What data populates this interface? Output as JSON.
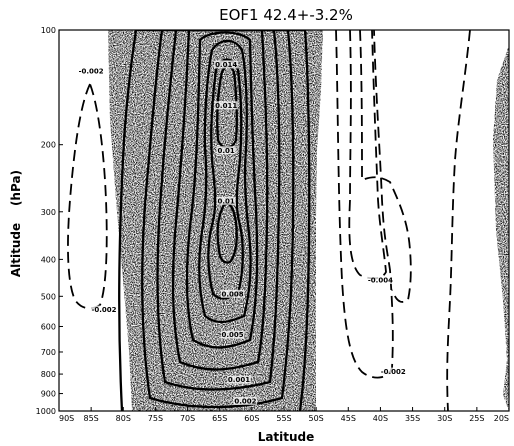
{
  "chart_data": {
    "type": "contour",
    "title": "EOF1 42.4+-3.2%",
    "xlabel": "Latitude",
    "ylabel": "Altitude",
    "ylabel_unit": "(hPa)",
    "x_ticks": [
      "90S",
      "85S",
      "80S",
      "75S",
      "70S",
      "65S",
      "60S",
      "55S",
      "50S",
      "45S",
      "40S",
      "35S",
      "30S",
      "25S",
      "20S"
    ],
    "y_ticks": [
      100,
      200,
      300,
      400,
      500,
      600,
      700,
      800,
      900,
      1000
    ],
    "y_scale": "log",
    "xlim": [
      "90S",
      "20S"
    ],
    "ylim": [
      1000,
      100
    ],
    "shaded_regions": [
      "80S-50S",
      "22S-20S"
    ],
    "contour_labels": [
      {
        "text": "-0.002",
        "lat": "85S",
        "p": 130
      },
      {
        "text": "-0.002",
        "lat": "83S",
        "p": 550
      },
      {
        "text": "-0.004",
        "lat": "40S",
        "p": 460
      },
      {
        "text": "-0.002",
        "lat": "38S",
        "p": 800
      },
      {
        "text": "0.014",
        "lat": "64S",
        "p": 125
      },
      {
        "text": "0.011",
        "lat": "64S",
        "p": 160
      },
      {
        "text": "0.01",
        "lat": "64S",
        "p": 210
      },
      {
        "text": "0.01",
        "lat": "64S",
        "p": 285
      },
      {
        "text": "0.008",
        "lat": "63S",
        "p": 500
      },
      {
        "text": "0.005",
        "lat": "63S",
        "p": 640
      },
      {
        "text": "0.001",
        "lat": "62S",
        "p": 840
      },
      {
        "text": "0.002",
        "lat": "61S",
        "p": 955
      }
    ]
  }
}
